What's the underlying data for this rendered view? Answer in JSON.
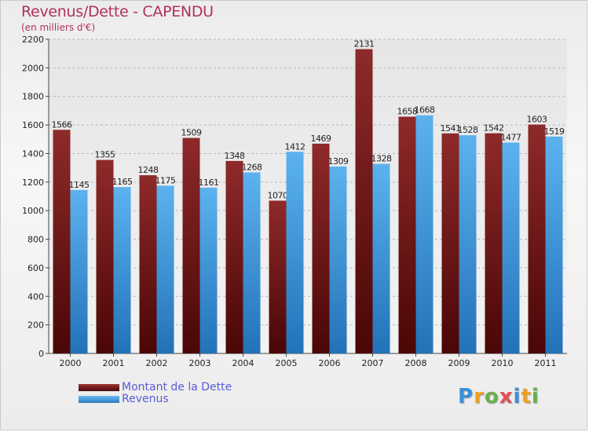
{
  "chart_data": {
    "type": "bar",
    "title": "Revenus/Dette - CAPENDU",
    "subtitle": "(en milliers d'€)",
    "categories": [
      "2000",
      "2001",
      "2002",
      "2003",
      "2004",
      "2005",
      "2006",
      "2007",
      "2008",
      "2009",
      "2010",
      "2011"
    ],
    "series": [
      {
        "name": "Montant de la Dette",
        "color": "#7a1c1c",
        "values": [
          1566,
          1355,
          1248,
          1509,
          1348,
          1070,
          1469,
          2131,
          1658,
          1541,
          1542,
          1603
        ]
      },
      {
        "name": "Revenus",
        "color": "#4aa3e6",
        "values": [
          1145,
          1165,
          1175,
          1161,
          1268,
          1412,
          1309,
          1328,
          1668,
          1528,
          1477,
          1519
        ]
      }
    ],
    "ylim": [
      0,
      2200
    ],
    "yticks": [
      0,
      200,
      400,
      600,
      800,
      1000,
      1200,
      1400,
      1600,
      1800,
      2000,
      2200
    ],
    "grid": true,
    "legend_position": "bottom-left"
  },
  "logo": {
    "letters": [
      "P",
      "r",
      "o",
      "x",
      "i",
      "t",
      "i"
    ],
    "colors": [
      "#3a8fd8",
      "#f0a020",
      "#6ab04c",
      "#e05050",
      "#3a8fd8",
      "#f0a020",
      "#6ab04c"
    ]
  }
}
